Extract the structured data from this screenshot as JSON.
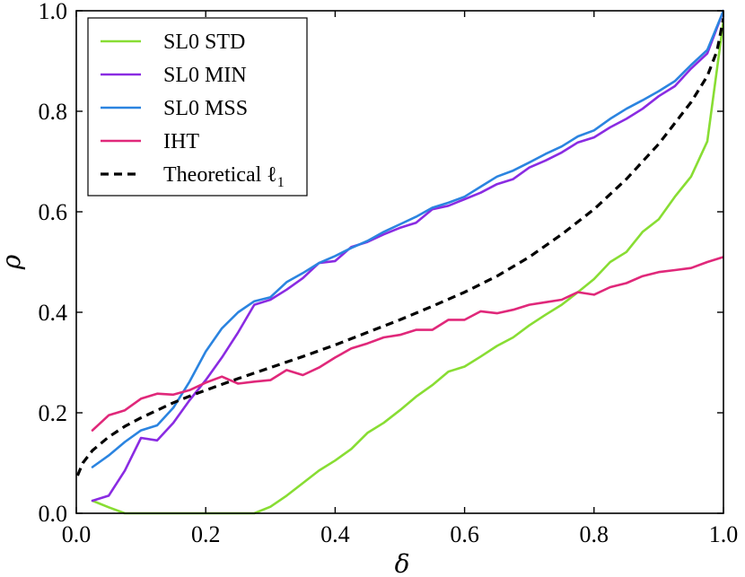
{
  "chart_data": {
    "type": "line",
    "title": "",
    "xlabel": "δ",
    "ylabel": "ρ",
    "xlim": [
      0.0,
      1.0
    ],
    "ylim": [
      0.0,
      1.0
    ],
    "grid": false,
    "legend_position": "top-left",
    "xticks": [
      "0.0",
      "0.2",
      "0.4",
      "0.6",
      "0.8",
      "1.0"
    ],
    "yticks": [
      "0.0",
      "0.2",
      "0.4",
      "0.6",
      "0.8",
      "1.0"
    ],
    "series": [
      {
        "name": "SL0 STD",
        "color": "#88dd33",
        "dash": "solid",
        "x": [
          0.025,
          0.05,
          0.075,
          0.1,
          0.125,
          0.15,
          0.175,
          0.2,
          0.225,
          0.25,
          0.275,
          0.3,
          0.325,
          0.35,
          0.375,
          0.4,
          0.425,
          0.45,
          0.475,
          0.5,
          0.525,
          0.55,
          0.575,
          0.6,
          0.625,
          0.65,
          0.675,
          0.7,
          0.725,
          0.75,
          0.775,
          0.8,
          0.825,
          0.85,
          0.875,
          0.9,
          0.925,
          0.95,
          0.975,
          1.0
        ],
        "values": [
          0.025,
          0.012,
          0.0,
          0.0,
          0.0,
          0.0,
          0.0,
          0.0,
          0.0,
          0.0,
          0.0,
          0.013,
          0.035,
          0.06,
          0.085,
          0.105,
          0.128,
          0.16,
          0.18,
          0.205,
          0.232,
          0.255,
          0.282,
          0.292,
          0.312,
          0.333,
          0.35,
          0.374,
          0.395,
          0.415,
          0.44,
          0.466,
          0.5,
          0.52,
          0.56,
          0.585,
          0.63,
          0.67,
          0.74,
          0.98
        ]
      },
      {
        "name": "SL0 MIN",
        "color": "#8a2be2",
        "dash": "solid",
        "x": [
          0.025,
          0.05,
          0.075,
          0.1,
          0.125,
          0.15,
          0.175,
          0.2,
          0.225,
          0.25,
          0.275,
          0.3,
          0.325,
          0.35,
          0.375,
          0.4,
          0.425,
          0.45,
          0.475,
          0.5,
          0.525,
          0.55,
          0.575,
          0.6,
          0.625,
          0.65,
          0.675,
          0.7,
          0.725,
          0.75,
          0.775,
          0.8,
          0.825,
          0.85,
          0.875,
          0.9,
          0.925,
          0.95,
          0.975,
          1.0
        ],
        "values": [
          0.025,
          0.035,
          0.085,
          0.15,
          0.145,
          0.18,
          0.225,
          0.265,
          0.31,
          0.36,
          0.415,
          0.425,
          0.445,
          0.468,
          0.498,
          0.502,
          0.53,
          0.54,
          0.555,
          0.568,
          0.578,
          0.605,
          0.612,
          0.625,
          0.638,
          0.655,
          0.665,
          0.688,
          0.702,
          0.718,
          0.738,
          0.748,
          0.768,
          0.785,
          0.805,
          0.83,
          0.85,
          0.885,
          0.915,
          1.0
        ]
      },
      {
        "name": "SL0 MSS",
        "color": "#2b84e0",
        "dash": "solid",
        "x": [
          0.025,
          0.05,
          0.075,
          0.1,
          0.125,
          0.15,
          0.175,
          0.2,
          0.225,
          0.25,
          0.275,
          0.3,
          0.325,
          0.35,
          0.375,
          0.4,
          0.425,
          0.45,
          0.475,
          0.5,
          0.525,
          0.55,
          0.575,
          0.6,
          0.625,
          0.65,
          0.675,
          0.7,
          0.725,
          0.75,
          0.775,
          0.8,
          0.825,
          0.85,
          0.875,
          0.9,
          0.925,
          0.95,
          0.975,
          1.0
        ],
        "values": [
          0.092,
          0.115,
          0.142,
          0.165,
          0.175,
          0.21,
          0.262,
          0.322,
          0.368,
          0.4,
          0.422,
          0.43,
          0.46,
          0.478,
          0.498,
          0.512,
          0.528,
          0.542,
          0.56,
          0.575,
          0.59,
          0.608,
          0.618,
          0.63,
          0.65,
          0.67,
          0.682,
          0.698,
          0.715,
          0.73,
          0.75,
          0.762,
          0.785,
          0.805,
          0.822,
          0.84,
          0.86,
          0.892,
          0.922,
          1.0
        ]
      },
      {
        "name": "IHT",
        "color": "#e0287a",
        "dash": "solid",
        "x": [
          0.025,
          0.05,
          0.075,
          0.1,
          0.125,
          0.15,
          0.175,
          0.2,
          0.225,
          0.25,
          0.275,
          0.3,
          0.325,
          0.35,
          0.375,
          0.4,
          0.425,
          0.45,
          0.475,
          0.5,
          0.525,
          0.55,
          0.575,
          0.6,
          0.625,
          0.65,
          0.675,
          0.7,
          0.725,
          0.75,
          0.775,
          0.8,
          0.825,
          0.85,
          0.875,
          0.9,
          0.925,
          0.95,
          0.975,
          1.0
        ],
        "values": [
          0.165,
          0.195,
          0.205,
          0.228,
          0.238,
          0.236,
          0.245,
          0.26,
          0.272,
          0.258,
          0.262,
          0.265,
          0.285,
          0.275,
          0.29,
          0.31,
          0.328,
          0.338,
          0.35,
          0.355,
          0.365,
          0.365,
          0.385,
          0.385,
          0.402,
          0.398,
          0.405,
          0.415,
          0.42,
          0.425,
          0.44,
          0.435,
          0.45,
          0.458,
          0.472,
          0.48,
          0.484,
          0.488,
          0.5,
          0.51
        ]
      },
      {
        "name": "Theoretical ℓ1",
        "color": "#000000",
        "dash": "dashed",
        "x": [
          0.002,
          0.01,
          0.025,
          0.05,
          0.075,
          0.1,
          0.125,
          0.15,
          0.175,
          0.2,
          0.25,
          0.3,
          0.35,
          0.4,
          0.45,
          0.5,
          0.55,
          0.6,
          0.65,
          0.7,
          0.75,
          0.8,
          0.85,
          0.9,
          0.95,
          0.975,
          0.99,
          1.0
        ],
        "values": [
          0.075,
          0.1,
          0.125,
          0.152,
          0.173,
          0.19,
          0.205,
          0.22,
          0.233,
          0.245,
          0.268,
          0.29,
          0.312,
          0.335,
          0.36,
          0.385,
          0.412,
          0.44,
          0.472,
          0.51,
          0.555,
          0.605,
          0.665,
          0.735,
          0.818,
          0.87,
          0.92,
          0.985
        ]
      }
    ],
    "legend": [
      {
        "label": "SL0 STD",
        "color": "#88dd33",
        "dash": "solid"
      },
      {
        "label": "SL0 MIN",
        "color": "#8a2be2",
        "dash": "solid"
      },
      {
        "label": "SL0 MSS",
        "color": "#2b84e0",
        "dash": "solid"
      },
      {
        "label": "IHT",
        "color": "#e0287a",
        "dash": "solid"
      },
      {
        "label": "Theoretical ℓ",
        "subscript": "1",
        "color": "#000000",
        "dash": "dashed"
      }
    ]
  }
}
